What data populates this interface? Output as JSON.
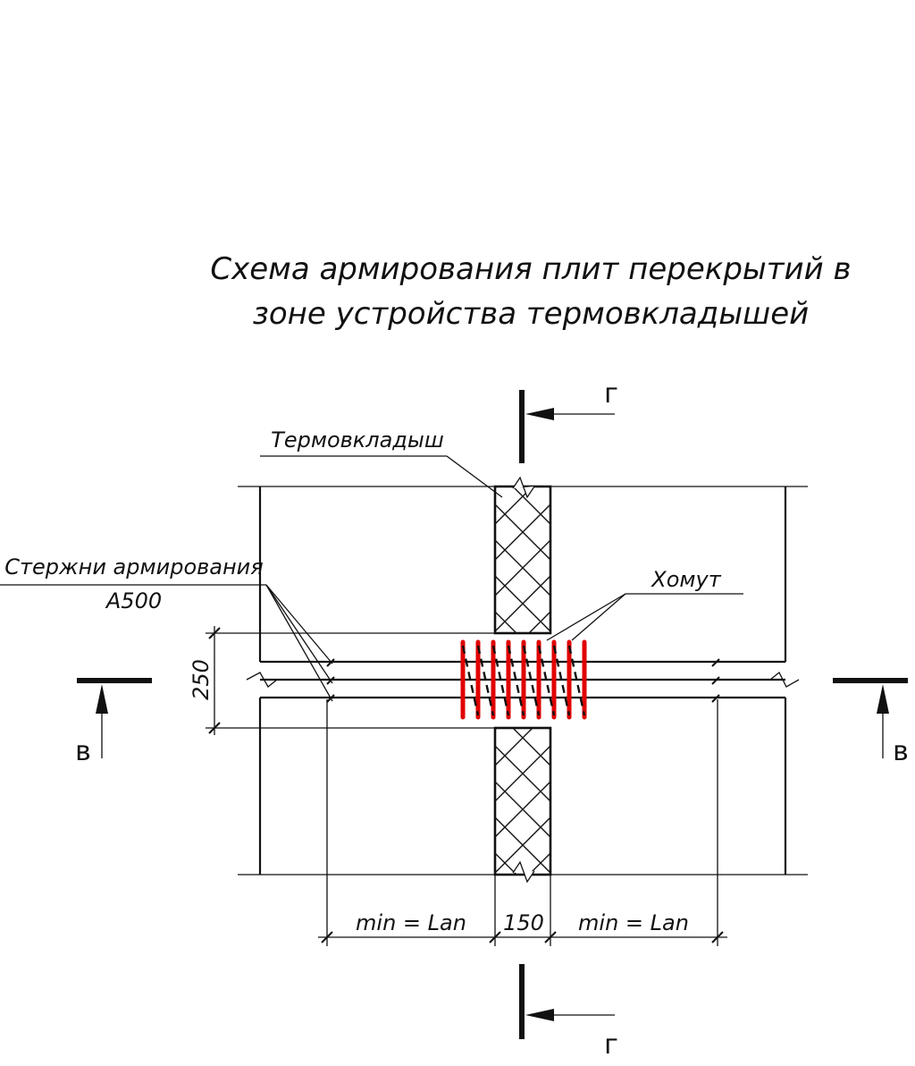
{
  "title": {
    "line1": "Схема армирования плит перекрытий в",
    "line2": "зоне устройства термовкладышей"
  },
  "labels": {
    "thermo_insert": "Термовкладыш",
    "rods_line1": "Стержни армирования",
    "rods_line2": "А500",
    "stirrup": "Хомут"
  },
  "dimensions": {
    "height": "250",
    "left_length": "min = Lan",
    "gap": "150",
    "right_length": "min = Lan"
  },
  "section_marks": {
    "vertical_top": "г",
    "vertical_bottom": "г",
    "horizontal_left": "в",
    "horizontal_right": "в"
  },
  "colors": {
    "stirrup": "#e00000",
    "lines": "#111111"
  }
}
